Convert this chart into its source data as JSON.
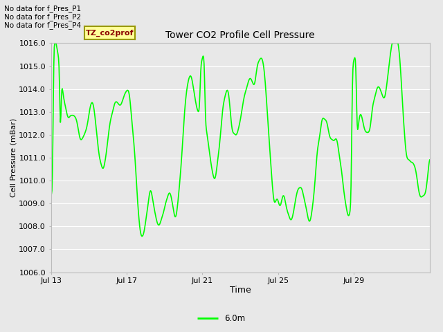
{
  "title": "Tower CO2 Profile Cell Pressure",
  "xlabel": "Time",
  "ylabel": "Cell Pressure (mBar)",
  "ylim": [
    1006.0,
    1016.0
  ],
  "yticks": [
    1006.0,
    1007.0,
    1008.0,
    1009.0,
    1010.0,
    1011.0,
    1012.0,
    1013.0,
    1014.0,
    1015.0,
    1016.0
  ],
  "xtick_labels": [
    "Jul 13",
    "Jul 17",
    "Jul 21",
    "Jul 25",
    "Jul 29"
  ],
  "line_color": "#00FF00",
  "line_width": 1.2,
  "background_color": "#E8E8E8",
  "plot_bg_color": "#E8E8E8",
  "grid_color": "#FFFFFF",
  "legend_label": "6.0m",
  "legend_color": "#00FF00",
  "annotations": [
    "No data for f_Pres_P1",
    "No data for f_Pres_P2",
    "No data for f_Pres_P4"
  ],
  "tooltip_text": "TZ_co2prof",
  "tooltip_bg": "#FFFF99",
  "tooltip_border": "#999900",
  "seed": 42
}
